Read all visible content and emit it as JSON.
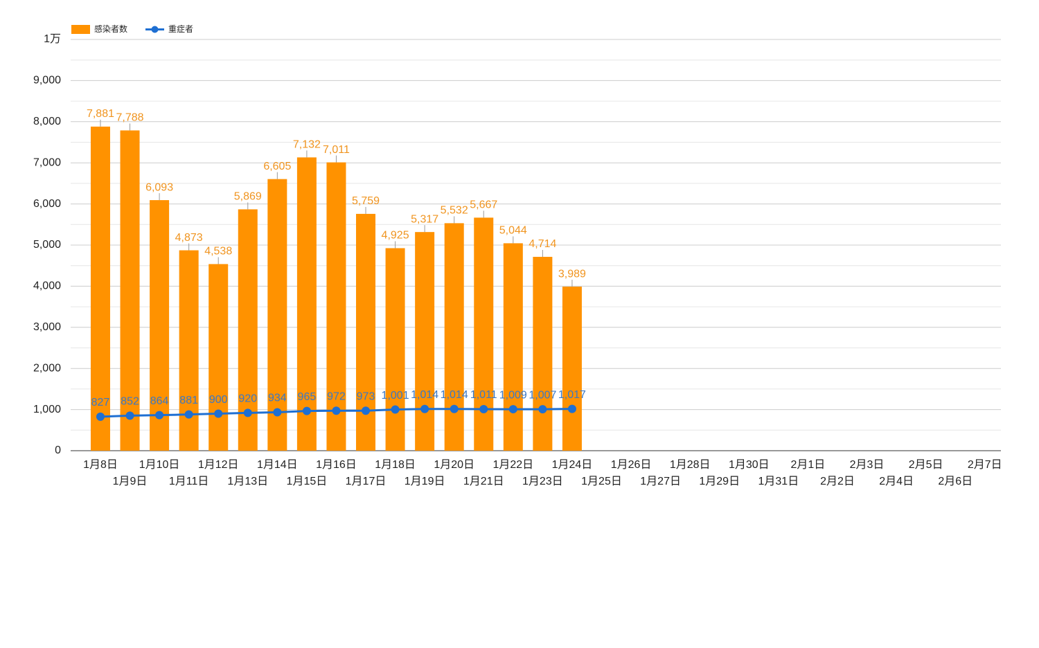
{
  "chart_data": {
    "type": "bar_line",
    "categories": [
      "1月8日",
      "1月9日",
      "1月10日",
      "1月11日",
      "1月12日",
      "1月13日",
      "1月14日",
      "1月15日",
      "1月16日",
      "1月17日",
      "1月18日",
      "1月19日",
      "1月20日",
      "1月21日",
      "1月22日",
      "1月23日",
      "1月24日",
      "1月25日",
      "1月26日",
      "1月27日",
      "1月28日",
      "1月29日",
      "1月30日",
      "1月31日",
      "2月1日",
      "2月2日",
      "2月3日",
      "2月4日",
      "2月5日",
      "2月6日",
      "2月7日"
    ],
    "series": [
      {
        "name": "感染者数",
        "type": "bar",
        "color": "#ff9200",
        "values": [
          7881,
          7788,
          6093,
          4873,
          4538,
          5869,
          6605,
          7132,
          7011,
          5759,
          4925,
          5317,
          5532,
          5667,
          5044,
          4714,
          3989,
          null,
          null,
          null,
          null,
          null,
          null,
          null,
          null,
          null,
          null,
          null,
          null,
          null,
          null
        ],
        "value_labels": [
          "7,881",
          "7,788",
          "6,093",
          "4,873",
          "4,538",
          "5,869",
          "6,605",
          "7,132",
          "7,011",
          "5,759",
          "4,925",
          "5,317",
          "5,532",
          "5,667",
          "5,044",
          "4,714",
          "3,989",
          null,
          null,
          null,
          null,
          null,
          null,
          null,
          null,
          null,
          null,
          null,
          null,
          null,
          null
        ]
      },
      {
        "name": "重症者",
        "type": "line",
        "color": "#1e6fd2",
        "values": [
          827,
          852,
          864,
          881,
          900,
          920,
          934,
          965,
          972,
          973,
          1001,
          1014,
          1014,
          1011,
          1009,
          1007,
          1017,
          null,
          null,
          null,
          null,
          null,
          null,
          null,
          null,
          null,
          null,
          null,
          null,
          null,
          null
        ],
        "value_labels": [
          "827",
          "852",
          "864",
          "881",
          "900",
          "920",
          "934",
          "965",
          "972",
          "973",
          "1,001",
          "1,014",
          "1,014",
          "1,011",
          "1,009",
          "1,007",
          "1,017",
          null,
          null,
          null,
          null,
          null,
          null,
          null,
          null,
          null,
          null,
          null,
          null,
          null,
          null
        ]
      }
    ],
    "ylim": [
      0,
      10000
    ],
    "yticks": [
      0,
      {
        "value": 1000,
        "label": "1,000"
      },
      {
        "value": 2000,
        "label": "2,000"
      },
      {
        "value": 3000,
        "label": "3,000"
      },
      {
        "value": 4000,
        "label": "4,000"
      },
      {
        "value": 5000,
        "label": "5,000"
      },
      {
        "value": 6000,
        "label": "6,000"
      },
      {
        "value": 7000,
        "label": "7,000"
      },
      {
        "value": 8000,
        "label": "8,000"
      },
      {
        "value": 9000,
        "label": "9,000"
      },
      {
        "value": 10000,
        "label": "1万"
      }
    ],
    "minor_yticks": [
      500,
      1500,
      2500,
      3500,
      4500,
      5500,
      6500,
      7500,
      8500,
      9500
    ],
    "grid": true,
    "legend": "top-left"
  }
}
